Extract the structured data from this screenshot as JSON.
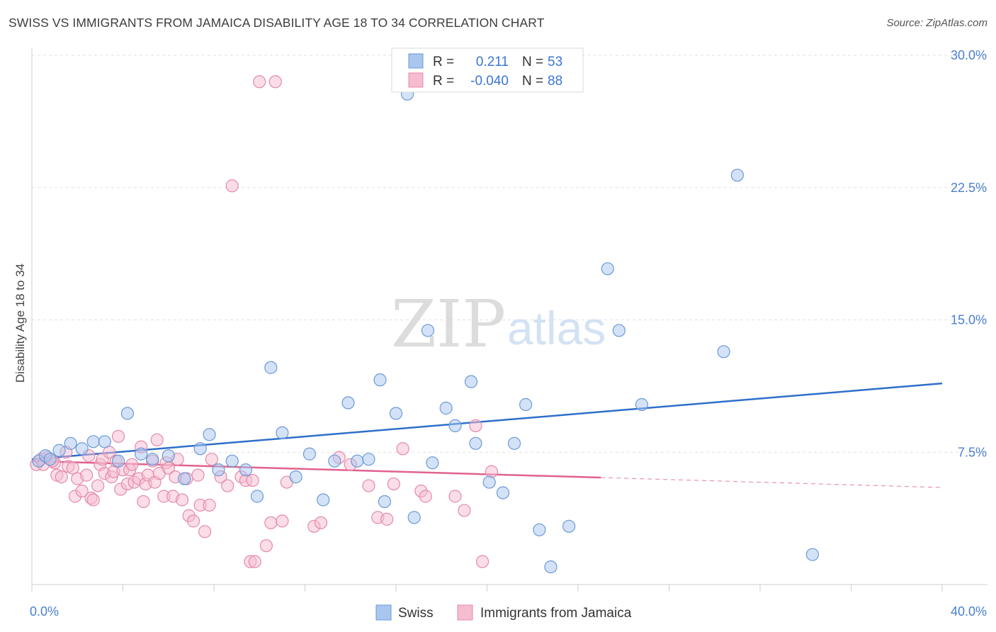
{
  "header": {
    "title": "SWISS VS IMMIGRANTS FROM JAMAICA DISABILITY AGE 18 TO 34 CORRELATION CHART",
    "source": "Source: ZipAtlas.com"
  },
  "watermark": {
    "zip": "ZIP",
    "atlas": "atlas"
  },
  "colors": {
    "swiss_fill": "#a9c6ef",
    "swiss_stroke": "#6a9ad8",
    "swiss_line": "#2f6fca",
    "jamaica_fill": "#f6bcd0",
    "jamaica_stroke": "#e48aaa",
    "jamaica_line": "#e0628f",
    "tick_text": "#4a7fcf",
    "r_value_text": "#3b76d6"
  },
  "stats_box": {
    "rows": [
      {
        "r_label": "R =",
        "r_value": "0.211",
        "n_label": "N =",
        "n_value": "53"
      },
      {
        "r_label": "R =",
        "r_value": "-0.040",
        "n_label": "N =",
        "n_value": "88"
      }
    ]
  },
  "chart_data": {
    "type": "scatter",
    "title": "SWISS VS IMMIGRANTS FROM JAMAICA DISABILITY AGE 18 TO 34 CORRELATION CHART",
    "xlabel": "",
    "ylabel": "Disability Age 18 to 34",
    "xlim": [
      0,
      40
    ],
    "ylim": [
      0,
      30
    ],
    "x_tick_labels": [
      "0.0%",
      "40.0%"
    ],
    "y_ticks": [
      7.5,
      15.0,
      22.5,
      30.0
    ],
    "y_tick_labels": [
      "7.5%",
      "15.0%",
      "22.5%",
      "30.0%"
    ],
    "grid": true,
    "legend_position": "bottom-center",
    "series": [
      {
        "name": "Swiss",
        "r": 0.211,
        "n": 53,
        "trend": {
          "x": [
            0,
            40
          ],
          "y": [
            7.1,
            11.4
          ],
          "solid_to": 40
        },
        "points": [
          [
            0.3,
            7.0
          ],
          [
            0.6,
            7.3
          ],
          [
            0.8,
            7.1
          ],
          [
            1.2,
            7.6
          ],
          [
            1.7,
            8.0
          ],
          [
            2.2,
            7.7
          ],
          [
            2.7,
            8.1
          ],
          [
            3.2,
            8.1
          ],
          [
            3.8,
            7.0
          ],
          [
            4.2,
            9.7
          ],
          [
            4.8,
            7.4
          ],
          [
            5.3,
            7.1
          ],
          [
            6.0,
            7.3
          ],
          [
            6.7,
            6.0
          ],
          [
            7.4,
            7.7
          ],
          [
            7.8,
            8.5
          ],
          [
            8.2,
            6.5
          ],
          [
            8.8,
            7.0
          ],
          [
            9.4,
            6.5
          ],
          [
            9.9,
            5.0
          ],
          [
            10.5,
            12.3
          ],
          [
            11.0,
            8.6
          ],
          [
            11.6,
            6.1
          ],
          [
            12.2,
            7.4
          ],
          [
            12.8,
            4.8
          ],
          [
            13.3,
            7.0
          ],
          [
            13.9,
            10.3
          ],
          [
            14.3,
            7.0
          ],
          [
            14.8,
            7.1
          ],
          [
            15.3,
            11.6
          ],
          [
            15.5,
            4.7
          ],
          [
            16.0,
            9.7
          ],
          [
            16.5,
            27.8
          ],
          [
            16.8,
            3.8
          ],
          [
            17.4,
            14.4
          ],
          [
            17.6,
            6.9
          ],
          [
            18.2,
            10.0
          ],
          [
            18.6,
            9.0
          ],
          [
            19.3,
            11.5
          ],
          [
            19.5,
            8.0
          ],
          [
            20.1,
            5.8
          ],
          [
            20.7,
            5.2
          ],
          [
            21.2,
            8.0
          ],
          [
            21.7,
            10.2
          ],
          [
            22.3,
            3.1
          ],
          [
            22.8,
            1.0
          ],
          [
            23.6,
            3.3
          ],
          [
            25.3,
            17.9
          ],
          [
            25.8,
            14.4
          ],
          [
            26.8,
            10.2
          ],
          [
            30.4,
            13.2
          ],
          [
            31.0,
            23.2
          ],
          [
            34.3,
            1.7
          ]
        ]
      },
      {
        "name": "Immigrants from Jamaica",
        "r": -0.04,
        "n": 88,
        "trend": {
          "x": [
            0,
            40
          ],
          "y": [
            7.0,
            5.5
          ],
          "solid_to": 25
        },
        "points": [
          [
            0.2,
            6.8
          ],
          [
            0.4,
            7.1
          ],
          [
            0.5,
            6.8
          ],
          [
            0.7,
            7.2
          ],
          [
            0.9,
            7.0
          ],
          [
            1.0,
            6.9
          ],
          [
            1.1,
            6.2
          ],
          [
            1.3,
            6.1
          ],
          [
            1.5,
            7.5
          ],
          [
            1.6,
            6.7
          ],
          [
            1.8,
            6.6
          ],
          [
            1.9,
            5.0
          ],
          [
            2.0,
            6.0
          ],
          [
            2.2,
            5.3
          ],
          [
            2.4,
            6.2
          ],
          [
            2.5,
            7.3
          ],
          [
            2.6,
            4.9
          ],
          [
            2.7,
            4.8
          ],
          [
            2.9,
            5.6
          ],
          [
            3.0,
            6.8
          ],
          [
            3.1,
            7.1
          ],
          [
            3.2,
            6.3
          ],
          [
            3.4,
            7.5
          ],
          [
            3.5,
            6.1
          ],
          [
            3.6,
            6.4
          ],
          [
            3.7,
            7.0
          ],
          [
            3.8,
            8.4
          ],
          [
            3.9,
            5.4
          ],
          [
            4.0,
            6.5
          ],
          [
            4.2,
            5.7
          ],
          [
            4.3,
            6.5
          ],
          [
            4.4,
            6.8
          ],
          [
            4.5,
            5.8
          ],
          [
            4.7,
            6.0
          ],
          [
            4.8,
            7.8
          ],
          [
            4.9,
            4.7
          ],
          [
            5.0,
            5.7
          ],
          [
            5.1,
            6.2
          ],
          [
            5.3,
            7.0
          ],
          [
            5.4,
            5.8
          ],
          [
            5.5,
            8.2
          ],
          [
            5.6,
            6.3
          ],
          [
            5.8,
            5.0
          ],
          [
            5.9,
            6.9
          ],
          [
            6.0,
            6.6
          ],
          [
            6.2,
            5.0
          ],
          [
            6.3,
            6.1
          ],
          [
            6.4,
            7.1
          ],
          [
            6.6,
            4.8
          ],
          [
            6.8,
            6.0
          ],
          [
            6.9,
            3.9
          ],
          [
            7.1,
            3.6
          ],
          [
            7.3,
            6.2
          ],
          [
            7.4,
            4.5
          ],
          [
            7.6,
            3.0
          ],
          [
            7.8,
            4.5
          ],
          [
            7.9,
            7.1
          ],
          [
            8.3,
            6.1
          ],
          [
            8.6,
            5.6
          ],
          [
            8.8,
            22.6
          ],
          [
            9.2,
            6.1
          ],
          [
            9.4,
            5.9
          ],
          [
            9.6,
            1.3
          ],
          [
            9.7,
            5.9
          ],
          [
            9.8,
            1.3
          ],
          [
            10.0,
            28.5
          ],
          [
            10.3,
            2.2
          ],
          [
            10.5,
            3.5
          ],
          [
            10.7,
            28.5
          ],
          [
            11.0,
            3.6
          ],
          [
            11.2,
            5.8
          ],
          [
            12.4,
            3.3
          ],
          [
            12.7,
            3.5
          ],
          [
            13.5,
            7.2
          ],
          [
            14.0,
            6.8
          ],
          [
            14.8,
            5.6
          ],
          [
            15.2,
            3.8
          ],
          [
            15.6,
            3.7
          ],
          [
            15.9,
            5.7
          ],
          [
            16.3,
            7.7
          ],
          [
            17.1,
            5.3
          ],
          [
            17.3,
            5.0
          ],
          [
            18.6,
            5.0
          ],
          [
            19.0,
            4.2
          ],
          [
            19.5,
            9.0
          ],
          [
            19.8,
            1.3
          ],
          [
            20.2,
            6.4
          ],
          [
            0.9,
            7.0
          ]
        ]
      }
    ]
  },
  "legend": {
    "items": [
      {
        "label": "Swiss"
      },
      {
        "label": "Immigrants from Jamaica"
      }
    ]
  }
}
